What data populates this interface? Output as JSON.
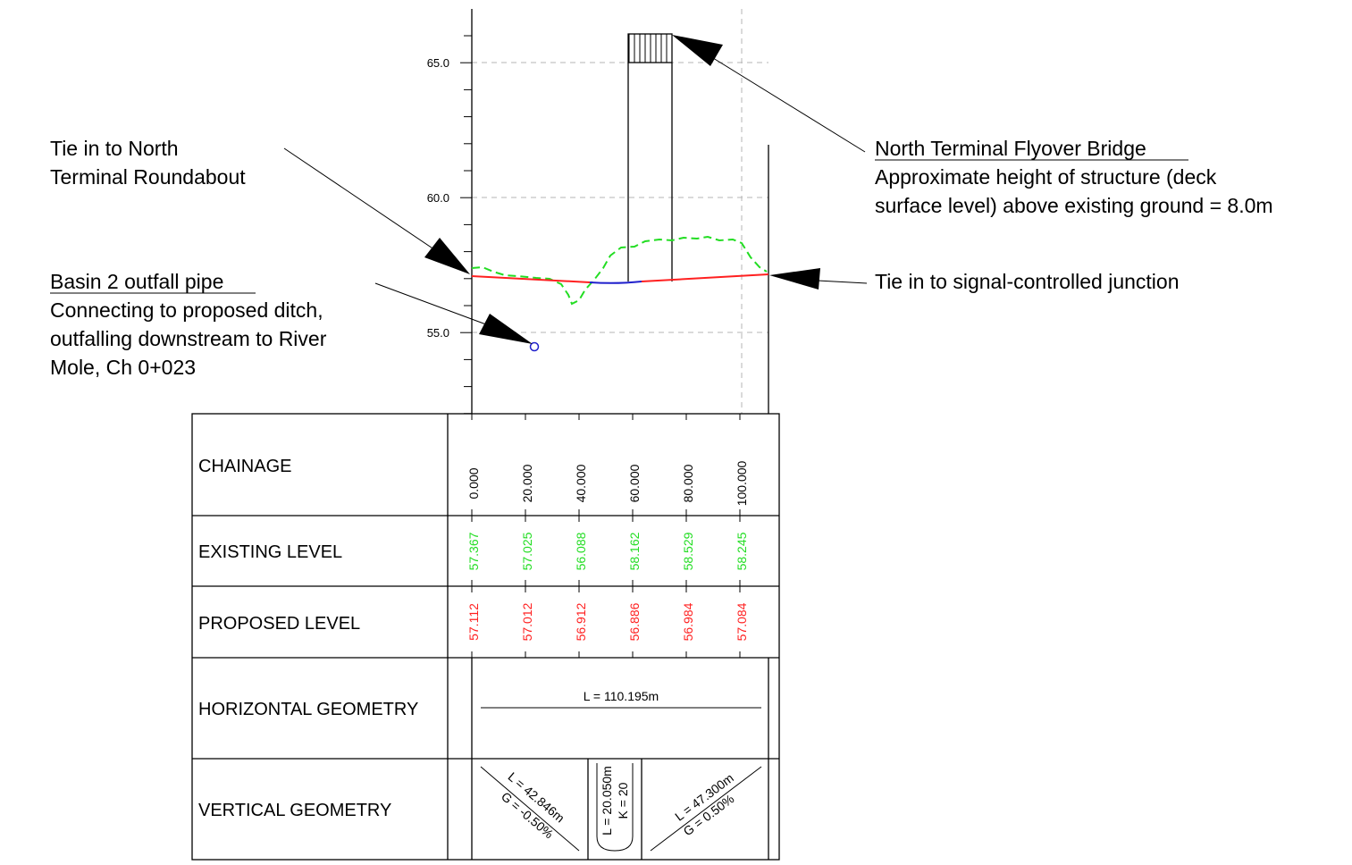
{
  "notes": {
    "roundabout": [
      "Tie in to North",
      "Terminal Roundabout"
    ],
    "basin_title": "Basin 2 outfall pipe",
    "basin_body": [
      "Connecting to proposed ditch,",
      "outfalling downstream to River",
      "Mole, Ch 0+023"
    ],
    "bridge_title": "North Terminal Flyover Bridge",
    "bridge_body": [
      "Approximate height of structure (deck",
      "surface level) above existing ground = 8.0m"
    ],
    "junction": "Tie in to signal-controlled junction"
  },
  "axis": {
    "labels": [
      "65.0",
      "60.0",
      "55.0"
    ]
  },
  "colors": {
    "existing": "#22dd22",
    "proposed": "#ff2020",
    "vertical_curve": "#2020cc",
    "pipe": "#2020cc"
  },
  "table": {
    "row_labels": [
      "CHAINAGE",
      "EXISTING LEVEL",
      "PROPOSED LEVEL",
      "HORIZONTAL GEOMETRY",
      "VERTICAL GEOMETRY"
    ],
    "chainage": [
      "0.000",
      "20.000",
      "40.000",
      "60.000",
      "80.000",
      "100.000"
    ],
    "existing": [
      "57.367",
      "57.025",
      "56.088",
      "58.162",
      "58.529",
      "58.245"
    ],
    "proposed": [
      "57.112",
      "57.012",
      "56.912",
      "56.886",
      "56.984",
      "57.084"
    ],
    "horizontal": "L = 110.195m",
    "vertical": {
      "g1_length": "L = 42.846m",
      "g1_grade": "G = -0.50%",
      "vc_length": "L = 20.050m",
      "vc_k": "K = 20",
      "g2_length": "L = 47.300m",
      "g2_grade": "G = 0.50%"
    }
  }
}
